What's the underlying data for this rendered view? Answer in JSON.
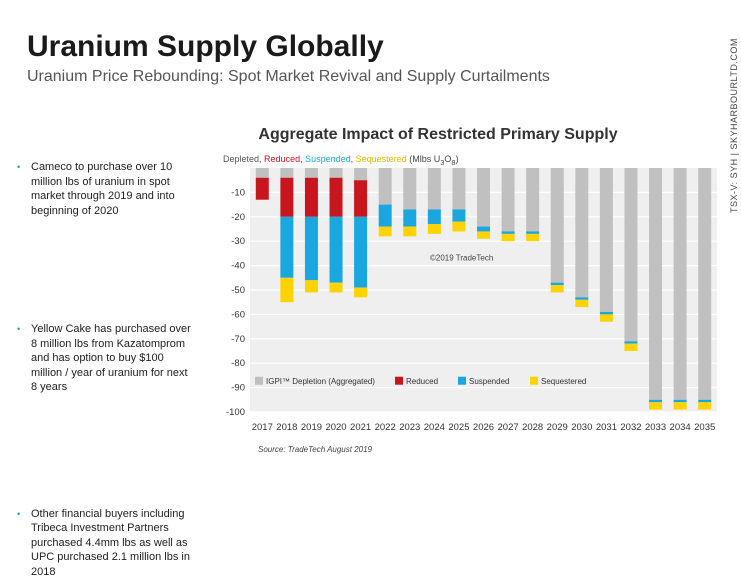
{
  "header": {
    "title": "Uranium Supply Globally",
    "subtitle": "Uranium Price Rebounding: Spot Market Revival and Supply Curtailments",
    "side_text": "TSX-V: SYH  |  SKYHARBOURLTD.COM"
  },
  "bullets": [
    "Cameco to purchase over 10 million lbs of uranium in spot market through 2019 and into beginning of 2020",
    "Yellow Cake has purchased over 8 million lbs from Kazatomprom and has option to buy $100 million / year of uranium for next 8 years",
    "Other financial buyers including Tribeca Investment Partners purchased 4.4mm lbs as well as UPC purchased 2.1 million lbs in 2018"
  ],
  "legend_top": {
    "depleted": "Depleted",
    "reduced": "Reduced",
    "suspended": "Suspended",
    "sequestered": "Sequestered",
    "units": "(Mlbs U",
    "units_sub1": "3",
    "units_mid": "O",
    "units_sub2": "8",
    "units_end": ")"
  },
  "source": "Source: TradeTech August 2019",
  "colors": {
    "depletion": "#c0c0c0",
    "reduced": "#c8161e",
    "suspended": "#1aa7e0",
    "sequestered": "#ffd200",
    "plot_bg": "#efefef"
  },
  "chart_data": {
    "type": "bar",
    "stacked": true,
    "title": "Aggregate Impact of Restricted Primary Supply",
    "watermark": "©2019 TradeTech",
    "categories": [
      "2017",
      "2018",
      "2019",
      "2020",
      "2021",
      "2022",
      "2023",
      "2024",
      "2025",
      "2026",
      "2027",
      "2028",
      "2029",
      "2030",
      "2031",
      "2032",
      "2033",
      "2034",
      "2035"
    ],
    "ylim": [
      -100,
      0
    ],
    "yticks": [
      -10,
      -20,
      -30,
      -40,
      -50,
      -60,
      -70,
      -80,
      -90,
      -100
    ],
    "series": [
      {
        "name": "IGPI™ Depletion (Aggregated)",
        "color": "#c0c0c0",
        "values": [
          -4,
          -4,
          -4,
          -4,
          -5,
          -15,
          -17,
          -17,
          -17,
          -24,
          -26,
          -26,
          -47,
          -53,
          -59,
          -71,
          -95,
          -95,
          -95
        ]
      },
      {
        "name": "Reduced",
        "color": "#c8161e",
        "values": [
          -9,
          -16,
          -16,
          -16,
          -15,
          0,
          0,
          0,
          0,
          0,
          0,
          0,
          0,
          0,
          0,
          0,
          0,
          0,
          0
        ]
      },
      {
        "name": "Suspended",
        "color": "#1aa7e0",
        "values": [
          0,
          -25,
          -26,
          -27,
          -29,
          -9,
          -7,
          -6,
          -5,
          -2,
          -1,
          -1,
          -1,
          -1,
          -1,
          -1,
          -1,
          -1,
          -1
        ]
      },
      {
        "name": "Sequestered",
        "color": "#ffd200",
        "values": [
          0,
          -10,
          -5,
          -4,
          -4,
          -4,
          -4,
          -4,
          -4,
          -3,
          -3,
          -3,
          -3,
          -3,
          -3,
          -3,
          -3,
          -3,
          -3
        ]
      }
    ]
  }
}
